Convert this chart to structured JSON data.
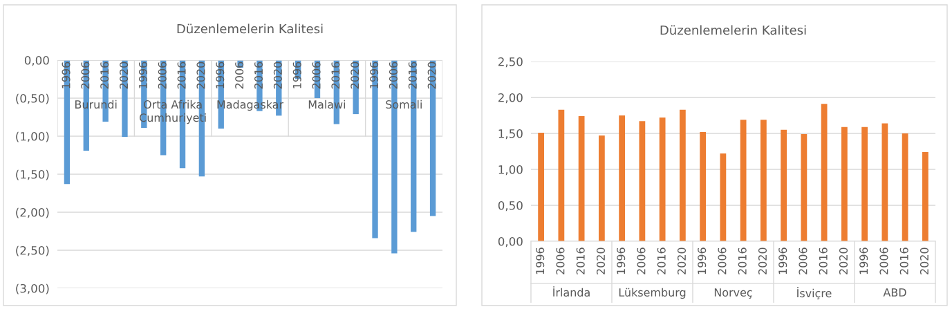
{
  "chart_data": [
    {
      "type": "bar",
      "title": "Düzenlemelerin Kalitesi",
      "categories": [
        "1996",
        "2006",
        "2016",
        "2020",
        "1996",
        "2006",
        "2016",
        "2020",
        "1996",
        "2006",
        "2016",
        "2020",
        "1996",
        "2006",
        "2016",
        "2020",
        "1996",
        "2006",
        "2016",
        "2020"
      ],
      "annotations": [
        "Burundi",
        "Orta Afrika Cumhuriyeti",
        "Madagaskar",
        "Malawi",
        "Somali"
      ],
      "values": [
        -1.63,
        -1.19,
        -0.81,
        -1.01,
        -0.89,
        -1.25,
        -1.42,
        -1.53,
        -0.9,
        -0.1,
        -0.67,
        -0.73,
        -0.25,
        -0.5,
        -0.84,
        -0.71,
        -2.34,
        -2.54,
        -2.26,
        -2.05
      ],
      "color": "#5b9bd5",
      "ylim": [
        -3,
        0
      ],
      "yticks": [
        {
          "value": 0,
          "label": "0,00"
        },
        {
          "value": -0.5,
          "label": "(0,50)"
        },
        {
          "value": -1,
          "label": "(1,00)"
        },
        {
          "value": -1.5,
          "label": "(1,50)"
        },
        {
          "value": -2,
          "label": "(2,00)"
        },
        {
          "value": -2.5,
          "label": "(2,50)"
        },
        {
          "value": -3,
          "label": "(3,00)"
        }
      ],
      "grid": "y"
    },
    {
      "type": "bar",
      "title": "Düzenlemelerin Kalitesi",
      "categories": [
        "1996",
        "2006",
        "2016",
        "2020",
        "1996",
        "2006",
        "2016",
        "2020",
        "1996",
        "2006",
        "2016",
        "2020",
        "1996",
        "2006",
        "2016",
        "2020",
        "1996",
        "2006",
        "2016",
        "2020"
      ],
      "annotations": [
        "İrlanda",
        "Lüksemburg",
        "Norveç",
        "İsviçre",
        "ABD"
      ],
      "values": [
        1.51,
        1.83,
        1.74,
        1.47,
        1.75,
        1.67,
        1.72,
        1.83,
        1.52,
        1.22,
        1.69,
        1.69,
        1.55,
        1.49,
        1.91,
        1.59,
        1.59,
        1.64,
        1.5,
        1.24
      ],
      "color": "#ed7d31",
      "ylim": [
        0,
        2.5
      ],
      "yticks": [
        {
          "value": 0,
          "label": "0,00"
        },
        {
          "value": 0.5,
          "label": "0,50"
        },
        {
          "value": 1,
          "label": "1,00"
        },
        {
          "value": 1.5,
          "label": "1,50"
        },
        {
          "value": 2,
          "label": "2,00"
        },
        {
          "value": 2.5,
          "label": "2,50"
        }
      ],
      "grid": "y"
    }
  ]
}
